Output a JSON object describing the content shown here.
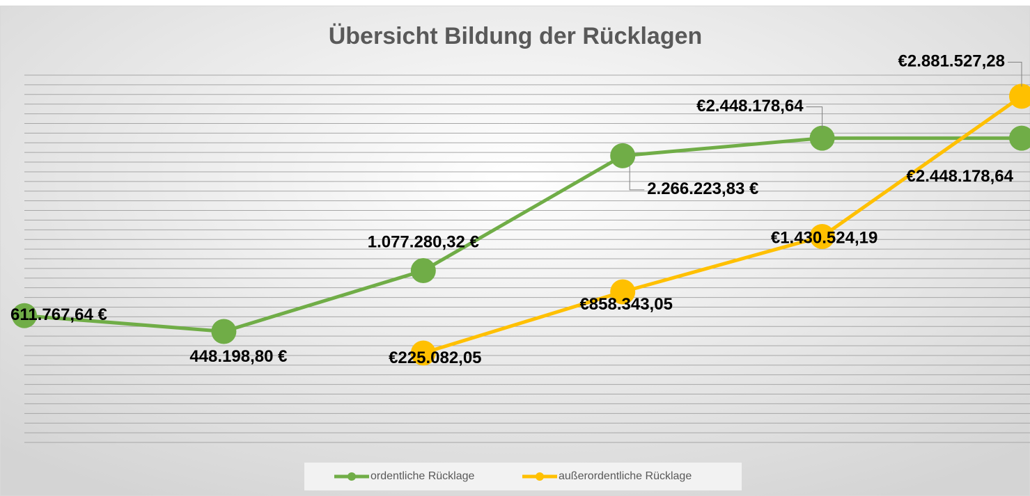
{
  "chart_data": {
    "type": "line",
    "title": "Übersicht Bildung der Rücklagen",
    "categories": [
      null,
      null,
      null,
      null,
      null,
      null
    ],
    "series": [
      {
        "name": "ordentliche Rücklage",
        "color": "#70ad47",
        "values": [
          611767.64,
          448198.8,
          1077280.32,
          2266223.83,
          2448178.64,
          2448178.64
        ],
        "value_labels": [
          "611.767,64 €",
          "448.198,80 €",
          "1.077.280,32 €",
          "2.266.223,83 €",
          "€2.448.178,64",
          "€2.448.178,64"
        ]
      },
      {
        "name": "außerordentliche Rücklage",
        "color": "#ffc000",
        "values": [
          null,
          null,
          225082.05,
          858343.05,
          1430524.19,
          2881527.28
        ],
        "value_labels": [
          null,
          null,
          "€225.082,05",
          "€858.343,05",
          "€1.430.524,19",
          "€2.881.527,28"
        ]
      }
    ],
    "ylim": [
      -700000,
      3100000
    ],
    "yticks": [
      -700000,
      -600000,
      -500000,
      -400000,
      -300000,
      -200000,
      -100000,
      0,
      100000,
      200000,
      300000,
      400000,
      500000,
      600000,
      700000,
      800000,
      900000,
      1000000,
      1100000,
      1200000,
      1300000,
      1400000,
      1500000,
      1600000,
      1700000,
      1800000,
      1900000,
      2000000,
      2100000,
      2200000,
      2300000,
      2400000,
      2500000,
      2600000,
      2700000,
      2800000,
      2900000,
      3000000,
      3100000
    ],
    "grid": true,
    "legend": "bottom"
  }
}
